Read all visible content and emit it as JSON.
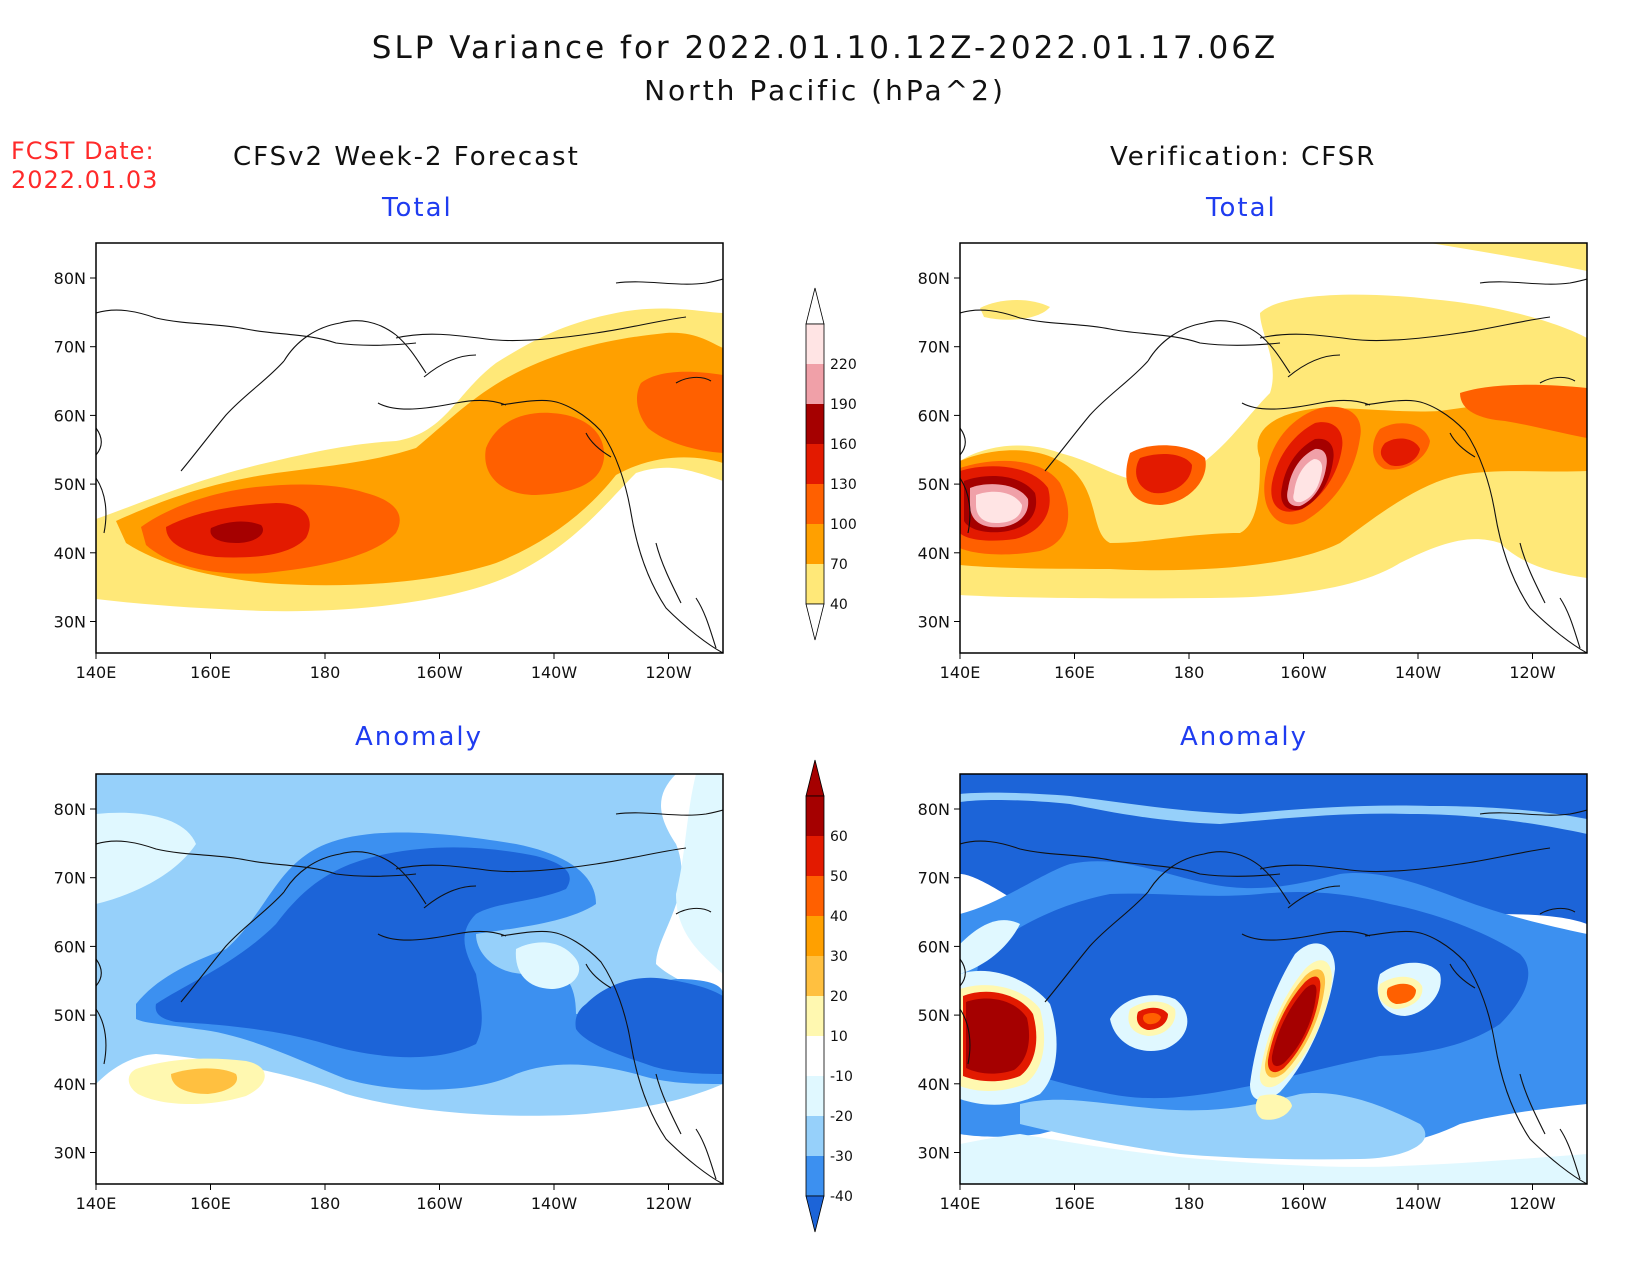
{
  "header": {
    "title_line1": "SLP Variance for 2022.01.10.12Z-2022.01.17.06Z",
    "title_line2": "North Pacific (hPa^2)",
    "fcst_date_label": "FCST Date:",
    "fcst_date_value": "2022.01.03"
  },
  "columns": {
    "left_title": "CFSv2 Week-2 Forecast",
    "right_title": "Verification: CFSR"
  },
  "panels": [
    {
      "id": "fcst-total",
      "title": "Total"
    },
    {
      "id": "cfsr-total",
      "title": "Total"
    },
    {
      "id": "fcst-anomaly",
      "title": "Anomaly"
    },
    {
      "id": "cfsr-anomaly",
      "title": "Anomaly"
    }
  ],
  "axes": {
    "lon_ticks": [
      "140E",
      "160E",
      "180",
      "160W",
      "140W",
      "120W"
    ],
    "lat_ticks": [
      "80N",
      "70N",
      "60N",
      "50N",
      "40N",
      "30N"
    ]
  },
  "colors": {
    "total": [
      "#ffe878",
      "#ffa000",
      "#ff6000",
      "#e31a00",
      "#a50000",
      "#f0a0a8",
      "#ffe4e4"
    ],
    "anomaly_neg": [
      "#1c64d8",
      "#3c90f0",
      "#96d0fa",
      "#e0f8ff"
    ],
    "anomaly_pos": [
      "#fff8b0",
      "#ffc040",
      "#ffa000",
      "#ff6000",
      "#e31a00",
      "#a50000"
    ],
    "coast": "#111111"
  },
  "colorbars": {
    "total": {
      "labels": [
        "220",
        "190",
        "160",
        "130",
        "100",
        "70",
        "40"
      ]
    },
    "anomaly": {
      "labels": [
        "60",
        "50",
        "40",
        "30",
        "20",
        "10",
        "-10",
        "-20",
        "-30",
        "-40"
      ]
    }
  }
}
